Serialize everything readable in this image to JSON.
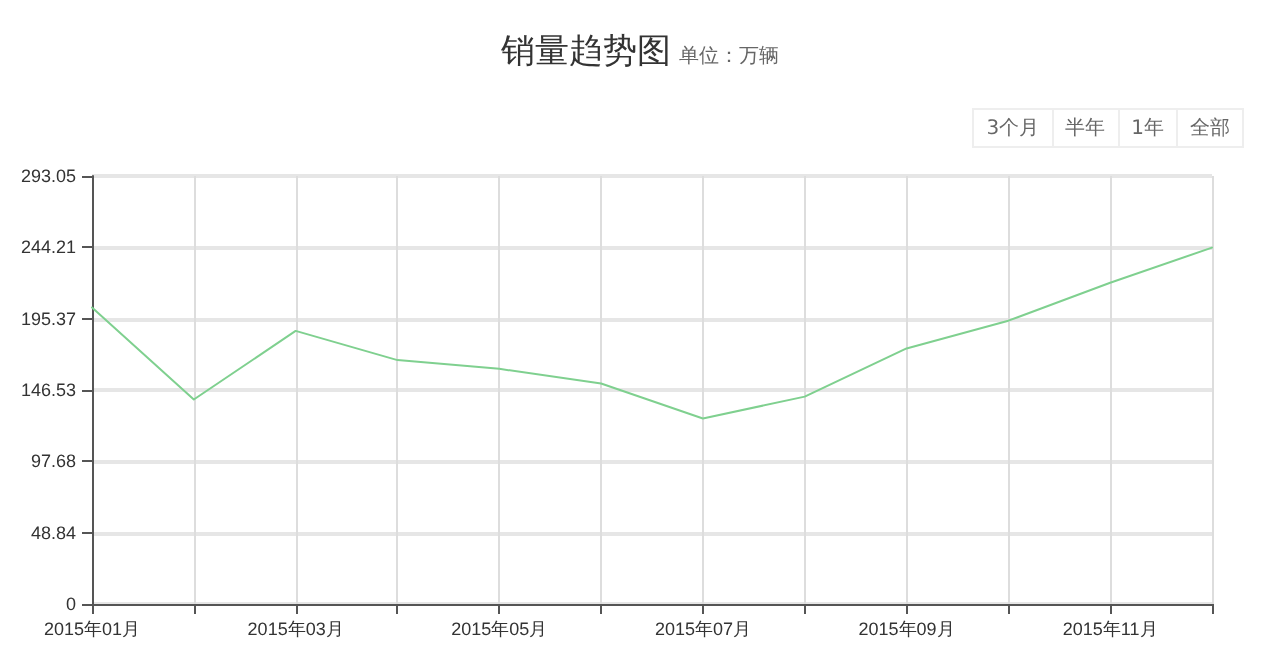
{
  "chart_data": {
    "type": "line",
    "title": "销量趋势图",
    "subtitle": "单位：万辆",
    "annotations": [
      "3个月",
      "半年",
      "1年",
      "全部"
    ],
    "categories": [
      "2015年01月",
      null,
      "2015年03月",
      null,
      "2015年05月",
      null,
      "2015年07月",
      null,
      "2015年09月",
      null,
      "2015年11月",
      null
    ],
    "series": [
      {
        "color": "#7fd08f",
        "values": [
          203,
          140,
          187,
          167,
          161,
          151,
          127,
          142,
          175,
          194,
          220,
          244
        ]
      }
    ],
    "ylim": [
      0,
      293.05
    ],
    "yticks": [
      0,
      48.84,
      97.68,
      146.53,
      195.37,
      244.21,
      293.05
    ],
    "grid": true,
    "marker": "none",
    "line_style": "solid"
  }
}
